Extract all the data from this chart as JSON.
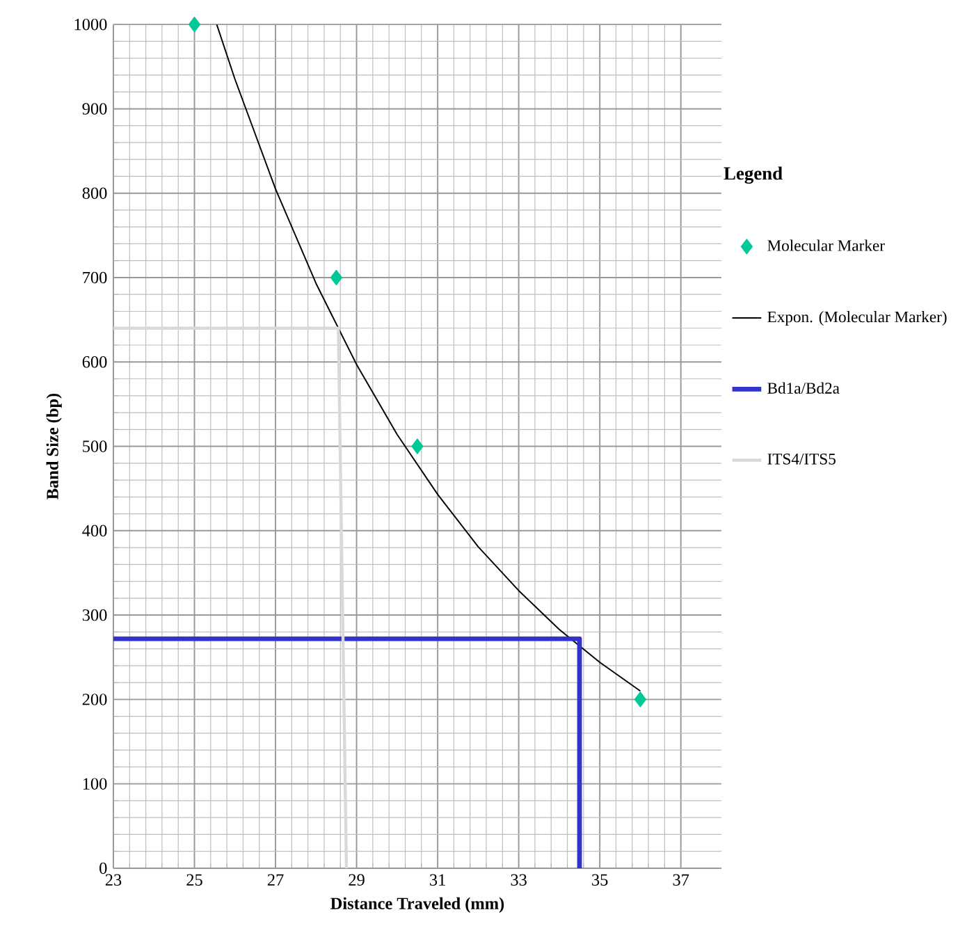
{
  "chart_data": {
    "type": "scatter",
    "xlabel": "Distance Traveled (mm)",
    "ylabel": "Band Size (bp)",
    "legend_title": "Legend",
    "legend": "right",
    "grid": true,
    "xlim": [
      23,
      38
    ],
    "ylim": [
      0,
      1000
    ],
    "xticks": [
      23,
      25,
      27,
      29,
      31,
      33,
      35,
      37
    ],
    "yticks": [
      0,
      100,
      200,
      300,
      400,
      500,
      600,
      700,
      800,
      900,
      1000
    ],
    "series": [
      {
        "name": "Molecular Marker",
        "marker": "diamond",
        "color": "#00c896",
        "x": [
          25,
          28.5,
          30.5,
          36
        ],
        "values": [
          1000,
          700,
          500,
          200
        ]
      },
      {
        "name": "Expon. (Molecular Marker)",
        "type": "line",
        "marker": "none",
        "color": "#000000",
        "x": [
          25.55,
          26,
          27,
          28,
          29,
          30,
          31,
          32,
          33,
          34,
          35,
          36
        ],
        "values": [
          1000,
          935,
          805,
          693,
          597,
          514,
          443,
          381,
          329,
          283,
          244,
          210
        ]
      },
      {
        "name": "Bd1a/Bd2a",
        "type": "line",
        "marker": "none",
        "color": "#3333cc",
        "x": [
          23,
          34.5,
          34.5
        ],
        "values": [
          272,
          272,
          0
        ]
      },
      {
        "name": "ITS4/ITS5",
        "type": "line",
        "marker": "none",
        "color": "#d9d9d9",
        "x": [
          23,
          28.55,
          28.75
        ],
        "values": [
          640,
          640,
          0
        ]
      }
    ]
  }
}
